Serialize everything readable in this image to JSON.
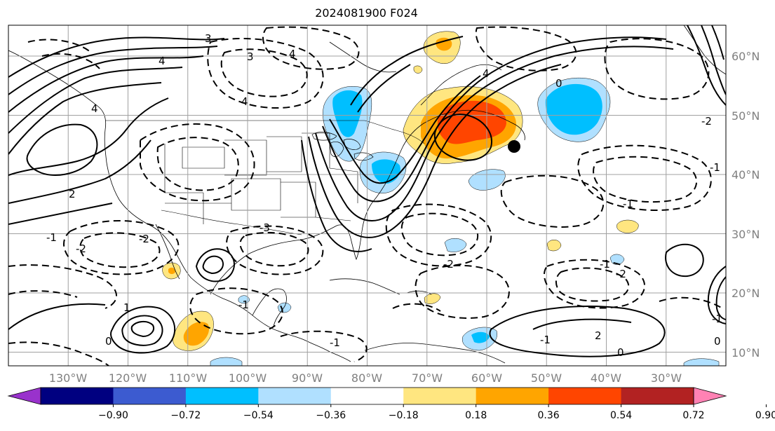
{
  "title": "2024081900 F024",
  "map": {
    "lon_range": [
      -140,
      -20
    ],
    "lat_range": [
      7.7,
      65.2
    ],
    "grid_lons": [
      -130,
      -120,
      -110,
      -100,
      -90,
      -80,
      -70,
      -60,
      -50,
      -40,
      -30
    ],
    "grid_lats": [
      10,
      20,
      30,
      40,
      50,
      60
    ],
    "lat_labels": [
      "10°N",
      "20°N",
      "30°N",
      "40°N",
      "50°N",
      "60°N"
    ],
    "lon_labels": [
      "130°W",
      "120°W",
      "110°W",
      "100°W",
      "90°W",
      "80°W",
      "70°W",
      "60°W",
      "50°W",
      "40°W",
      "30°W"
    ],
    "marker": {
      "lon": -54.5,
      "lat": 44.7
    },
    "contour_labels": [
      "4",
      "4",
      "2",
      "3",
      "4",
      "3",
      "4",
      "4",
      "0",
      "-1",
      "-2",
      "-1",
      "-2",
      "-3",
      "-1",
      "-2",
      "-1",
      "-1",
      "-2",
      "-1",
      "2",
      "0",
      "-1",
      "1",
      "0",
      "-1",
      "-2",
      "0"
    ]
  },
  "colorbar": {
    "colors": [
      "#9932cc",
      "#000080",
      "#3c5bd0",
      "#00bfff",
      "#b0e0ff",
      "#ffffff",
      "#ffe680",
      "#ffa500",
      "#ff4500",
      "#b22222",
      "#ff82b4"
    ],
    "tick_labels": [
      "−0.90",
      "−0.72",
      "−0.54",
      "−0.36",
      "−0.18",
      "0.18",
      "0.36",
      "0.54",
      "0.72",
      "0.90"
    ]
  },
  "shading_colors": {
    "orange": "#ffa500",
    "red_orange": "#ff4500",
    "yellow": "#ffe680",
    "light_blue": "#b0e0ff",
    "blue": "#00bfff"
  }
}
